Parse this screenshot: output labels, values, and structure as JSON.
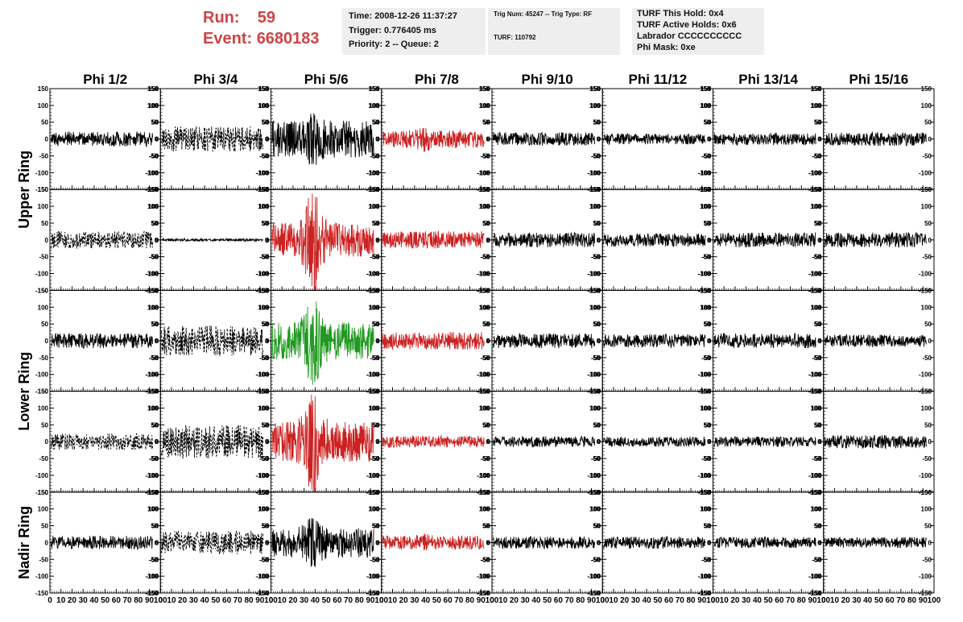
{
  "header": {
    "run_label": "Run:",
    "run_value": "59",
    "event_label": "Event:",
    "event_value": "6680183"
  },
  "info_box_1": {
    "time": "Time: 2008-12-26 11:37:27",
    "trigger": "Trigger: 0.776405 ms",
    "priority": "Priority: 2 -- Queue: 2"
  },
  "info_box_2": {
    "trig": "Trig Num: 45247 -- Trig Type: RF",
    "turf": "TURF: 110792"
  },
  "info_box_3": {
    "hold": "TURF This Hold: 0x4",
    "active": "TURF Active Holds: 0x6",
    "labrador": "Labrador CCCCCCCCCC",
    "phimask": "Phi Mask: 0xe"
  },
  "chart_data": {
    "type": "line",
    "columns": [
      "Phi 1/2",
      "Phi 3/4",
      "Phi 5/6",
      "Phi 7/8",
      "Phi 9/10",
      "Phi 11/12",
      "Phi 13/14",
      "Phi 15/16"
    ],
    "row_labels": [
      "Upper Ring",
      "Lower Ring",
      "Nadir Ring"
    ],
    "x_ticks": [
      "0",
      "10",
      "20",
      "30",
      "40",
      "50",
      "60",
      "70",
      "80",
      "90",
      "100"
    ],
    "y_ticks": [
      "150",
      "100",
      "50",
      "0",
      "-50",
      "-100",
      "-150"
    ],
    "xlim": [
      0,
      100
    ],
    "ylim": [
      -150,
      150
    ],
    "colors": {
      "default": "#000000",
      "red": "#cc2222",
      "green": "#229922"
    },
    "panel_styles": [
      [
        "solid",
        "dashed",
        "solid",
        "red",
        "solid",
        "solid",
        "solid",
        "solid"
      ],
      [
        "dashed",
        "solid",
        "red",
        "red",
        "solid",
        "solid",
        "solid",
        "solid"
      ],
      [
        "solid",
        "dashed",
        "green",
        "red",
        "solid",
        "solid",
        "solid",
        "solid"
      ],
      [
        "dashed",
        "dashed",
        "red",
        "red",
        "solid",
        "solid",
        "solid",
        "solid"
      ],
      [
        "solid",
        "dashed",
        "solid",
        "red",
        "solid",
        "solid",
        "solid",
        "solid"
      ]
    ],
    "panel_amplitude": [
      [
        22,
        38,
        55,
        26,
        20,
        16,
        18,
        20
      ],
      [
        26,
        4,
        50,
        26,
        22,
        20,
        22,
        22
      ],
      [
        22,
        45,
        55,
        26,
        22,
        20,
        22,
        18
      ],
      [
        24,
        50,
        60,
        18,
        16,
        15,
        15,
        20
      ],
      [
        20,
        35,
        45,
        20,
        18,
        18,
        16,
        16
      ]
    ],
    "panel_pulse": [
      [
        0,
        0,
        0.5,
        0.5,
        0,
        0,
        0,
        0
      ],
      [
        0,
        0,
        2.2,
        0,
        0,
        0,
        0,
        0
      ],
      [
        0,
        0,
        1.5,
        0,
        0,
        0,
        0,
        0
      ],
      [
        0,
        0,
        1.8,
        0,
        0,
        0,
        0,
        0
      ],
      [
        0,
        0,
        0.7,
        0.4,
        0,
        0,
        0,
        0
      ]
    ]
  }
}
